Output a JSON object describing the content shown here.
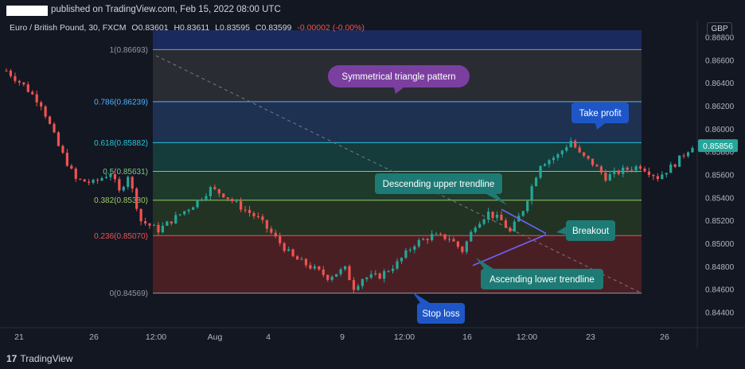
{
  "header": {
    "published": "published on TradingView.com, Feb 15, 2022 08:00 UTC"
  },
  "legend": {
    "symbol": "Euro / British Pound, 30, FXCM",
    "open": "O0.83601",
    "high": "H0.83611",
    "low": "L0.83595",
    "close": "C0.83599",
    "change": "-0.00002 (-0.00%)"
  },
  "currency": "GBP",
  "footer": {
    "logo_text": "TradingView"
  },
  "colors": {
    "background": "#131722",
    "up": "#26a69a",
    "down": "#ef5350",
    "callout_purple": "#7b3fa0",
    "callout_teal": "#1e7a74",
    "callout_blue": "#1e56c8",
    "trendline": "#6c63ff"
  },
  "chart_data": {
    "type": "candlestick",
    "y_axis": {
      "ylim": [
        0.8435,
        0.8683
      ],
      "ticks": [
        "0.86800",
        "0.86600",
        "0.86400",
        "0.86200",
        "0.86000",
        "0.85800",
        "0.85600",
        "0.85400",
        "0.85200",
        "0.85000",
        "0.84800",
        "0.84600",
        "0.84400"
      ],
      "tick_values": [
        0.868,
        0.866,
        0.864,
        0.862,
        0.86,
        0.858,
        0.856,
        0.854,
        0.852,
        0.85,
        0.848,
        0.846,
        0.844
      ],
      "current_price": "0.85856"
    },
    "x_axis": {
      "ticks": [
        "21",
        "26",
        "12:00",
        "Aug",
        "4",
        "9",
        "12:00",
        "16",
        "12:00",
        "23",
        "26"
      ]
    },
    "price_path": [
      [
        0,
        0.8651
      ],
      [
        4,
        0.8638
      ],
      [
        8,
        0.8622
      ],
      [
        12,
        0.8585
      ],
      [
        16,
        0.8556
      ],
      [
        20,
        0.8553
      ],
      [
        24,
        0.8562
      ],
      [
        26,
        0.8545
      ],
      [
        28,
        0.856
      ],
      [
        31,
        0.852
      ],
      [
        35,
        0.8512
      ],
      [
        39,
        0.8523
      ],
      [
        43,
        0.8534
      ],
      [
        47,
        0.8548
      ],
      [
        50,
        0.8543
      ],
      [
        54,
        0.8532
      ],
      [
        58,
        0.8522
      ],
      [
        62,
        0.8505
      ],
      [
        66,
        0.8488
      ],
      [
        70,
        0.848
      ],
      [
        74,
        0.8471
      ],
      [
        78,
        0.8478
      ],
      [
        80,
        0.8462
      ],
      [
        82,
        0.847
      ],
      [
        86,
        0.8472
      ],
      [
        90,
        0.8483
      ],
      [
        94,
        0.85
      ],
      [
        98,
        0.8507
      ],
      [
        102,
        0.8505
      ],
      [
        105,
        0.8494
      ],
      [
        108,
        0.8517
      ],
      [
        111,
        0.8527
      ],
      [
        114,
        0.852
      ],
      [
        116,
        0.851
      ],
      [
        119,
        0.853
      ],
      [
        123,
        0.857
      ],
      [
        127,
        0.8577
      ],
      [
        130,
        0.859
      ],
      [
        132,
        0.8578
      ],
      [
        135,
        0.857
      ],
      [
        138,
        0.8558
      ],
      [
        142,
        0.8564
      ],
      [
        146,
        0.8568
      ],
      [
        150,
        0.8558
      ],
      [
        154,
        0.857
      ],
      [
        158,
        0.8586
      ]
    ],
    "fibonacci": [
      {
        "ratio": "1",
        "price": 0.86693,
        "label": "1(0.86693)",
        "label_color": "#9598a1",
        "line_color": "#9598a1",
        "fill_above": "#1b2a5e",
        "fill_below": "#2a2c33"
      },
      {
        "ratio": "0.786",
        "price": 0.86239,
        "label": "0.786(0.86239)",
        "label_color": "#4fb3ff",
        "line_color": "#4fb3ff",
        "fill_below": "#1f3150"
      },
      {
        "ratio": "0.618",
        "price": 0.85882,
        "label": "0.618(0.85882)",
        "label_color": "#26c6da",
        "line_color": "#26c6da",
        "fill_below": "#153b3b"
      },
      {
        "ratio": "0.5",
        "price": 0.85631,
        "label": "0.5(0.85631)",
        "label_color": "#81c784",
        "line_color": "#81c784",
        "fill_below": "#1d3a2a"
      },
      {
        "ratio": "0.382",
        "price": 0.8538,
        "label": "0.382(0.85380)",
        "label_color": "#9ccc65",
        "line_color": "#9ccc65",
        "fill_below": "#233323"
      },
      {
        "ratio": "0.236",
        "price": 0.85071,
        "label": "0.236(0.85070)",
        "label_color": "#ef5350",
        "line_color": "#ef5350",
        "fill_below": "#4a1f24"
      },
      {
        "ratio": "0",
        "price": 0.84569,
        "label": "0(0.84569)",
        "label_color": "#9598a1",
        "line_color": "#9598a1"
      }
    ],
    "annotations": [
      {
        "text": "Symmetrical triangle pattern",
        "color": "#7b3fa0"
      },
      {
        "text": "Take profit",
        "color": "#1e56c8"
      },
      {
        "text": "Descending upper trendline",
        "color": "#1e7a74"
      },
      {
        "text": "Breakout",
        "color": "#1e7a74"
      },
      {
        "text": "Ascending lower trendline",
        "color": "#1e7a74"
      },
      {
        "text": "Stop loss",
        "color": "#1e56c8"
      }
    ]
  }
}
